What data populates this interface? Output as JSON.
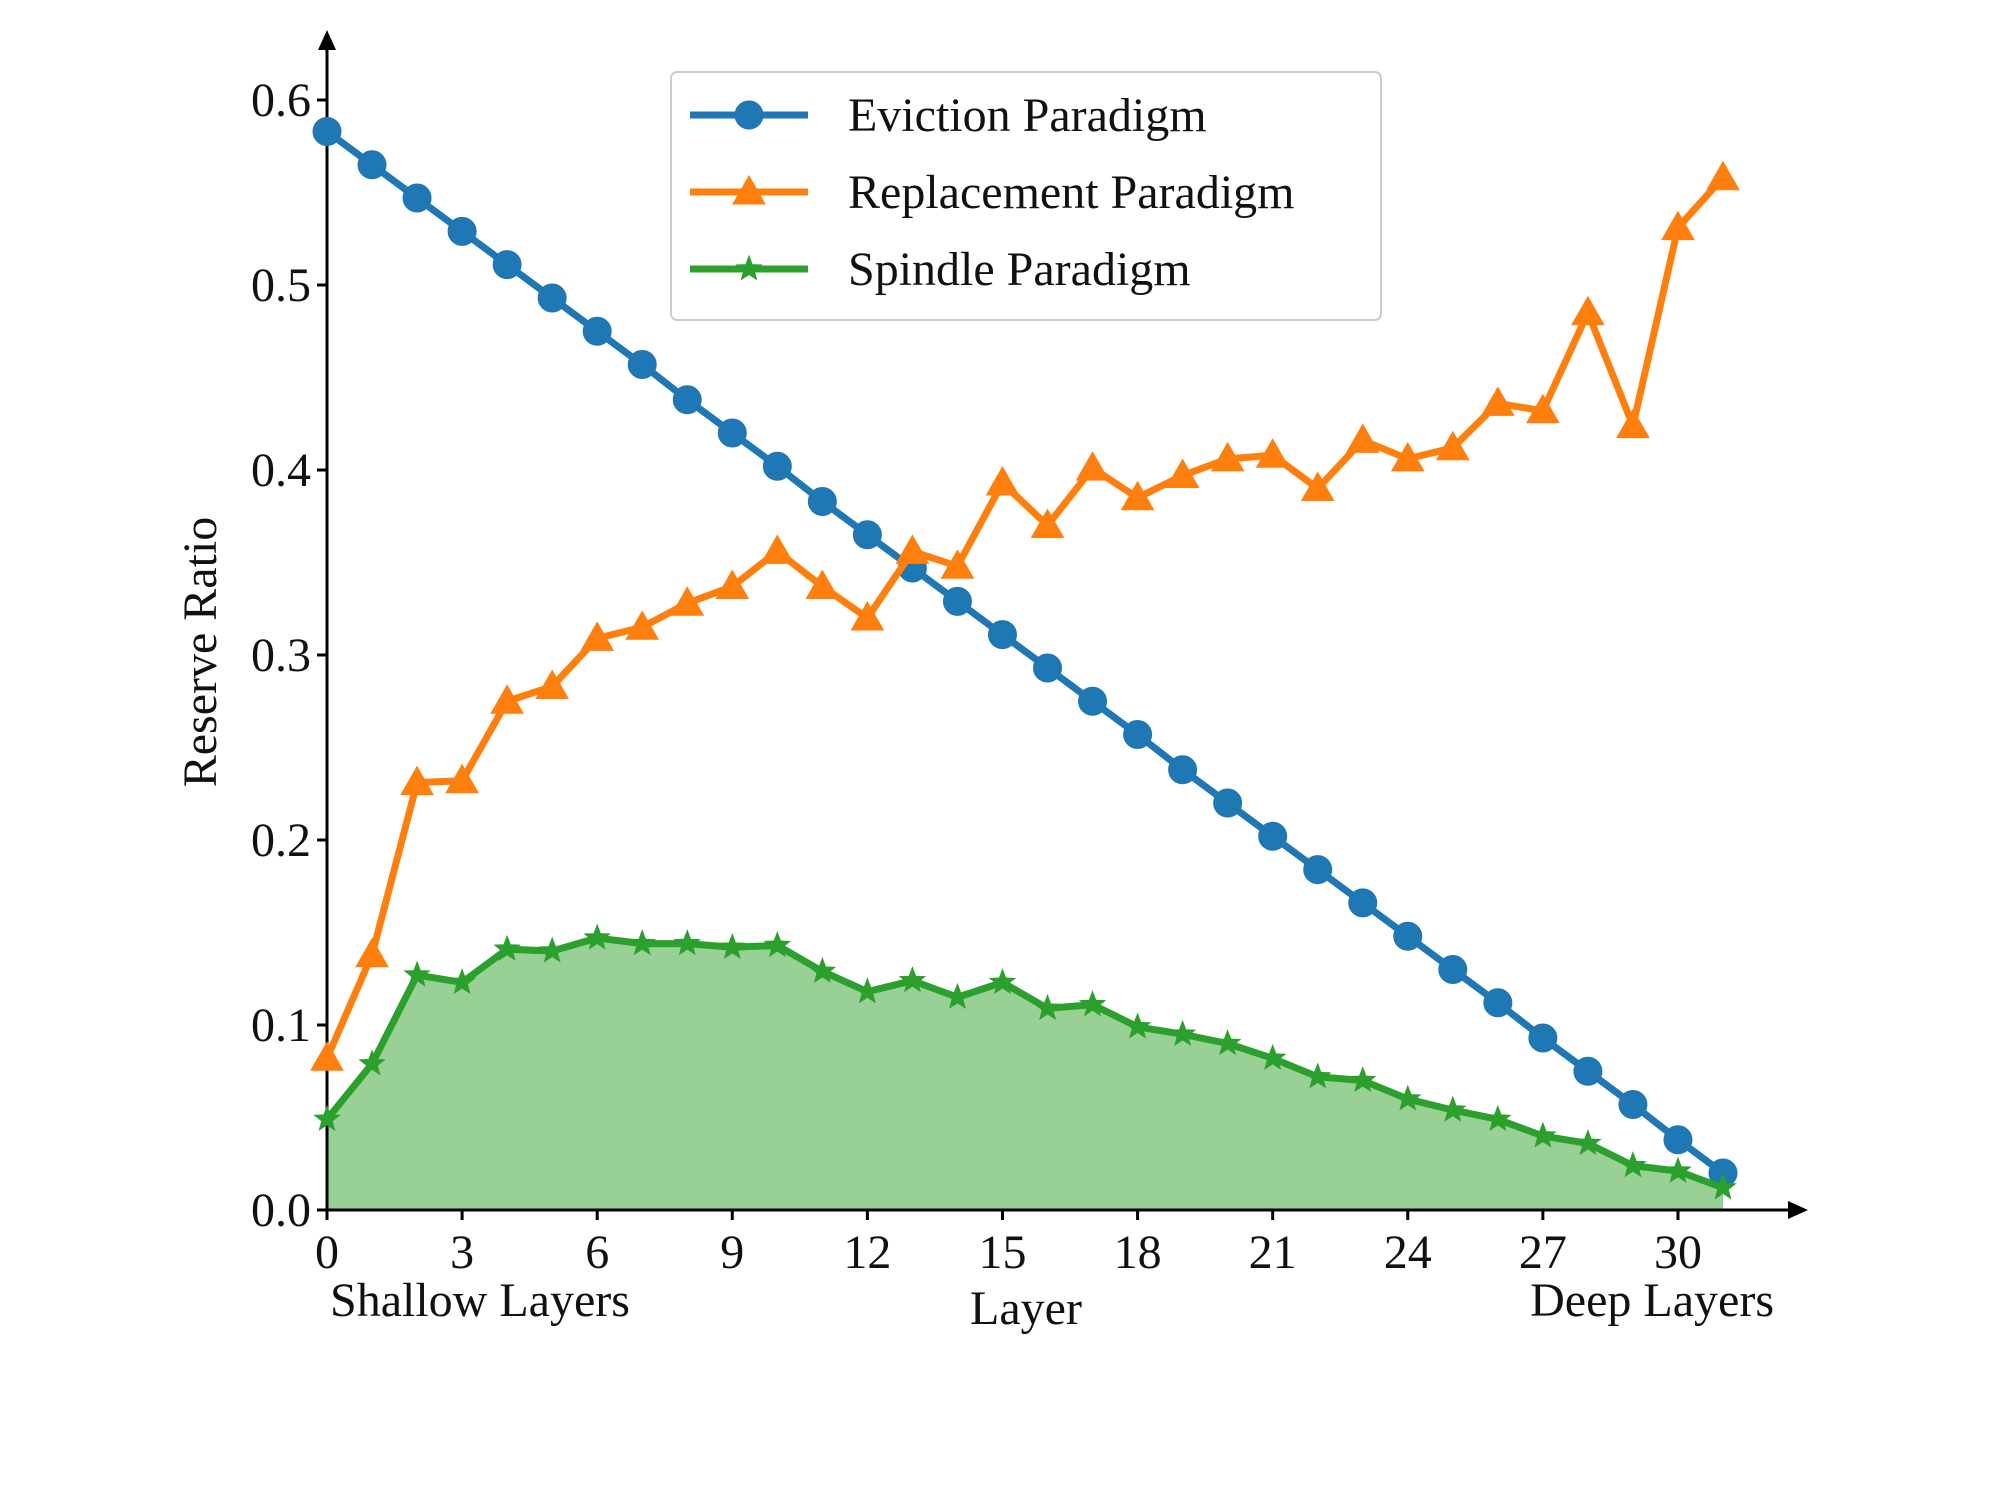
{
  "chart_data": {
    "type": "line",
    "xlabel": "Layer",
    "ylabel": "Reserve Ratio",
    "x_annotations": {
      "left": "Shallow Layers",
      "right": "Deep Layers"
    },
    "xlim": [
      0,
      31
    ],
    "ylim": [
      0,
      0.6
    ],
    "xticks": [
      0,
      3,
      6,
      9,
      12,
      15,
      18,
      21,
      24,
      27,
      30
    ],
    "yticks": [
      0.0,
      0.1,
      0.2,
      0.3,
      0.4,
      0.5,
      0.6
    ],
    "ytick_labels": [
      "0.0",
      "0.1",
      "0.2",
      "0.3",
      "0.4",
      "0.5",
      "0.6"
    ],
    "grid": false,
    "legend_position": "top-center",
    "x": [
      0,
      1,
      2,
      3,
      4,
      5,
      6,
      7,
      8,
      9,
      10,
      11,
      12,
      13,
      14,
      15,
      16,
      17,
      18,
      19,
      20,
      21,
      22,
      23,
      24,
      25,
      26,
      27,
      28,
      29,
      30,
      31
    ],
    "series": [
      {
        "name": "Eviction Paradigm",
        "color": "#1f77b4",
        "marker": "circle",
        "values": [
          0.583,
          0.565,
          0.547,
          0.529,
          0.511,
          0.493,
          0.475,
          0.457,
          0.438,
          0.42,
          0.402,
          0.383,
          0.365,
          0.347,
          0.329,
          0.311,
          0.293,
          0.275,
          0.257,
          0.238,
          0.22,
          0.202,
          0.184,
          0.166,
          0.148,
          0.13,
          0.112,
          0.093,
          0.075,
          0.057,
          0.038,
          0.02
        ]
      },
      {
        "name": "Replacement Paradigm",
        "color": "#ff7f0e",
        "marker": "triangle",
        "values": [
          0.082,
          0.138,
          0.231,
          0.232,
          0.275,
          0.283,
          0.309,
          0.315,
          0.328,
          0.337,
          0.356,
          0.337,
          0.32,
          0.356,
          0.348,
          0.393,
          0.37,
          0.401,
          0.385,
          0.397,
          0.406,
          0.408,
          0.39,
          0.416,
          0.406,
          0.412,
          0.436,
          0.432,
          0.485,
          0.424,
          0.531,
          0.558
        ]
      },
      {
        "name": "Spindle Paradigm",
        "color": "#2ca02c",
        "fill_color": "#98d095",
        "marker": "star",
        "filled_area": true,
        "values": [
          0.049,
          0.079,
          0.127,
          0.123,
          0.141,
          0.14,
          0.147,
          0.144,
          0.144,
          0.142,
          0.143,
          0.129,
          0.118,
          0.124,
          0.115,
          0.123,
          0.109,
          0.111,
          0.099,
          0.095,
          0.09,
          0.082,
          0.072,
          0.07,
          0.06,
          0.054,
          0.049,
          0.04,
          0.036,
          0.024,
          0.021,
          0.012
        ]
      }
    ]
  }
}
